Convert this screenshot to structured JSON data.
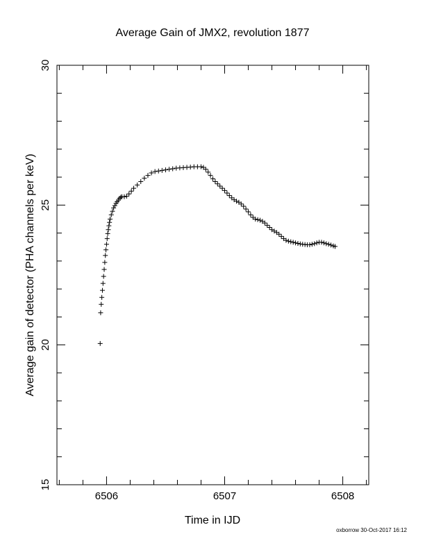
{
  "chart_data": {
    "type": "scatter",
    "title": "Average Gain of JMX2, revolution 1877",
    "xlabel": "Time in IJD",
    "ylabel": "Average gain of detector (PHA channels per keV)",
    "xlim": [
      6505.58,
      6508.22
    ],
    "ylim": [
      15,
      30
    ],
    "xticks": [
      6506,
      6507,
      6508
    ],
    "yticks": [
      15,
      20,
      25,
      30
    ],
    "marker": "plus",
    "grid": false,
    "points": [
      [
        5.946,
        20.05
      ],
      [
        5.95,
        21.15
      ],
      [
        5.955,
        21.45
      ],
      [
        5.96,
        21.7
      ],
      [
        5.965,
        21.95
      ],
      [
        5.97,
        22.2
      ],
      [
        5.975,
        22.45
      ],
      [
        5.98,
        22.7
      ],
      [
        5.985,
        22.95
      ],
      [
        5.99,
        23.2
      ],
      [
        5.995,
        23.4
      ],
      [
        6.0,
        23.6
      ],
      [
        6.005,
        23.8
      ],
      [
        6.01,
        23.98
      ],
      [
        6.015,
        24.12
      ],
      [
        6.02,
        24.26
      ],
      [
        6.025,
        24.38
      ],
      [
        6.03,
        24.5
      ],
      [
        6.04,
        24.65
      ],
      [
        6.05,
        24.78
      ],
      [
        6.06,
        24.9
      ],
      [
        6.07,
        24.98
      ],
      [
        6.08,
        25.06
      ],
      [
        6.09,
        25.12
      ],
      [
        6.1,
        25.18
      ],
      [
        6.11,
        25.24
      ],
      [
        6.12,
        25.28
      ],
      [
        6.13,
        25.3
      ],
      [
        6.15,
        25.3
      ],
      [
        6.17,
        25.32
      ],
      [
        6.19,
        25.4
      ],
      [
        6.21,
        25.5
      ],
      [
        6.23,
        25.6
      ],
      [
        6.26,
        25.72
      ],
      [
        6.29,
        25.84
      ],
      [
        6.32,
        25.96
      ],
      [
        6.35,
        26.06
      ],
      [
        6.38,
        26.15
      ],
      [
        6.41,
        26.2
      ],
      [
        6.44,
        26.22
      ],
      [
        6.47,
        26.24
      ],
      [
        6.5,
        26.26
      ],
      [
        6.53,
        26.28
      ],
      [
        6.56,
        26.3
      ],
      [
        6.59,
        26.32
      ],
      [
        6.62,
        26.33
      ],
      [
        6.65,
        26.34
      ],
      [
        6.68,
        26.35
      ],
      [
        6.71,
        26.36
      ],
      [
        6.74,
        26.37
      ],
      [
        6.77,
        26.37
      ],
      [
        6.8,
        26.37
      ],
      [
        6.82,
        26.35
      ],
      [
        6.84,
        26.28
      ],
      [
        6.86,
        26.18
      ],
      [
        6.88,
        26.06
      ],
      [
        6.9,
        25.94
      ],
      [
        6.92,
        25.84
      ],
      [
        6.94,
        25.76
      ],
      [
        6.96,
        25.68
      ],
      [
        6.98,
        25.6
      ],
      [
        7.0,
        25.52
      ],
      [
        7.02,
        25.43
      ],
      [
        7.04,
        25.34
      ],
      [
        7.06,
        25.26
      ],
      [
        7.08,
        25.19
      ],
      [
        7.1,
        25.14
      ],
      [
        7.12,
        25.1
      ],
      [
        7.14,
        25.04
      ],
      [
        7.16,
        24.96
      ],
      [
        7.18,
        24.86
      ],
      [
        7.2,
        24.76
      ],
      [
        7.22,
        24.65
      ],
      [
        7.24,
        24.56
      ],
      [
        7.26,
        24.5
      ],
      [
        7.28,
        24.48
      ],
      [
        7.3,
        24.46
      ],
      [
        7.32,
        24.42
      ],
      [
        7.34,
        24.36
      ],
      [
        7.36,
        24.28
      ],
      [
        7.38,
        24.2
      ],
      [
        7.4,
        24.12
      ],
      [
        7.42,
        24.07
      ],
      [
        7.44,
        24.02
      ],
      [
        7.46,
        23.96
      ],
      [
        7.48,
        23.88
      ],
      [
        7.5,
        23.8
      ],
      [
        7.52,
        23.74
      ],
      [
        7.54,
        23.71
      ],
      [
        7.56,
        23.69
      ],
      [
        7.58,
        23.67
      ],
      [
        7.6,
        23.65
      ],
      [
        7.62,
        23.63
      ],
      [
        7.64,
        23.61
      ],
      [
        7.66,
        23.6
      ],
      [
        7.68,
        23.59
      ],
      [
        7.7,
        23.58
      ],
      [
        7.72,
        23.58
      ],
      [
        7.74,
        23.6
      ],
      [
        7.76,
        23.62
      ],
      [
        7.78,
        23.65
      ],
      [
        7.8,
        23.67
      ],
      [
        7.82,
        23.67
      ],
      [
        7.84,
        23.65
      ],
      [
        7.86,
        23.62
      ],
      [
        7.88,
        23.6
      ],
      [
        7.9,
        23.57
      ],
      [
        7.92,
        23.54
      ],
      [
        7.935,
        23.52
      ]
    ],
    "x_offset": 6500
  },
  "footer": "oxborrow 30-Oct-2017 16:12"
}
